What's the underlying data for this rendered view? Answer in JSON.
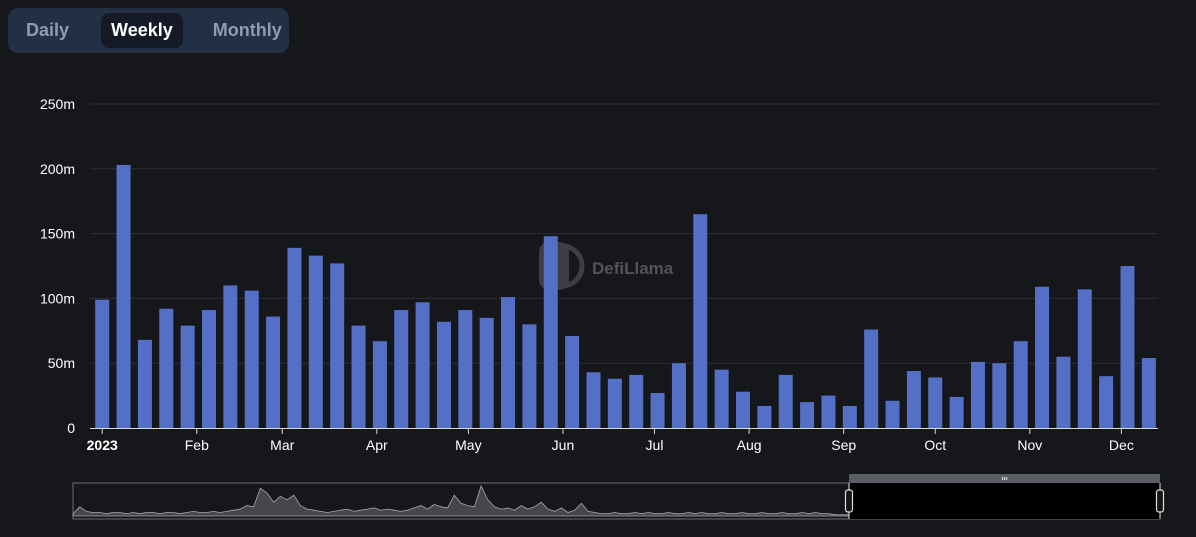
{
  "toggle": {
    "options": [
      "Daily",
      "Weekly",
      "Monthly"
    ],
    "selected": "Weekly"
  },
  "watermark": "DefiLlama",
  "colors": {
    "bar": "#5470c6",
    "background": "#16171b",
    "toggle_bg": "#233044",
    "toggle_active": "#141a26"
  },
  "chart_data": {
    "type": "bar",
    "y_ticks": [
      "0",
      "50m",
      "100m",
      "150m",
      "200m",
      "250m"
    ],
    "ylim": [
      0,
      250000000
    ],
    "x_ticks": [
      {
        "label": "2023",
        "bold": true,
        "date": "2023-01-01"
      },
      {
        "label": "Feb",
        "date": "2023-02-01"
      },
      {
        "label": "Mar",
        "date": "2023-03-01"
      },
      {
        "label": "Apr",
        "date": "2023-04-01"
      },
      {
        "label": "May",
        "date": "2023-05-01"
      },
      {
        "label": "Jun",
        "date": "2023-06-01"
      },
      {
        "label": "Jul",
        "date": "2023-07-01"
      },
      {
        "label": "Aug",
        "date": "2023-08-01"
      },
      {
        "label": "Sep",
        "date": "2023-09-01"
      },
      {
        "label": "Oct",
        "date": "2023-10-01"
      },
      {
        "label": "Nov",
        "date": "2023-11-01"
      },
      {
        "label": "Dec",
        "date": "2023-12-01"
      }
    ],
    "x_range": [
      "2022-12-28",
      "2023-12-13"
    ],
    "grid": true,
    "series": [
      {
        "x": [
          "2023-01-01",
          "2023-01-08",
          "2023-01-15",
          "2023-01-22",
          "2023-01-29",
          "2023-02-05",
          "2023-02-12",
          "2023-02-19",
          "2023-02-26",
          "2023-03-05",
          "2023-03-12",
          "2023-03-19",
          "2023-03-26",
          "2023-04-02",
          "2023-04-09",
          "2023-04-16",
          "2023-04-23",
          "2023-04-30",
          "2023-05-07",
          "2023-05-14",
          "2023-05-21",
          "2023-05-28",
          "2023-06-04",
          "2023-06-11",
          "2023-06-18",
          "2023-06-25",
          "2023-07-02",
          "2023-07-09",
          "2023-07-16",
          "2023-07-23",
          "2023-07-30",
          "2023-08-06",
          "2023-08-13",
          "2023-08-20",
          "2023-08-27",
          "2023-09-03",
          "2023-09-10",
          "2023-09-17",
          "2023-09-24",
          "2023-10-01",
          "2023-10-08",
          "2023-10-15",
          "2023-10-22",
          "2023-10-29",
          "2023-11-05",
          "2023-11-12",
          "2023-11-19",
          "2023-11-26",
          "2023-12-03",
          "2023-12-10"
        ],
        "values": [
          99000000,
          203000000,
          68000000,
          92000000,
          79000000,
          91000000,
          110000000,
          106000000,
          86000000,
          139000000,
          133000000,
          127000000,
          79000000,
          67000000,
          91000000,
          97000000,
          82000000,
          91000000,
          85000000,
          101000000,
          80000000,
          148000000,
          71000000,
          43000000,
          38000000,
          41000000,
          27000000,
          50000000,
          165000000,
          45000000,
          28000000,
          17000000,
          41000000,
          20000000,
          25000000,
          17000000,
          76000000,
          21000000,
          44000000,
          39000000,
          24000000,
          51000000,
          50000000,
          67000000,
          109000000,
          55000000,
          107000000,
          40000000,
          125000000,
          54000000
        ]
      }
    ]
  }
}
